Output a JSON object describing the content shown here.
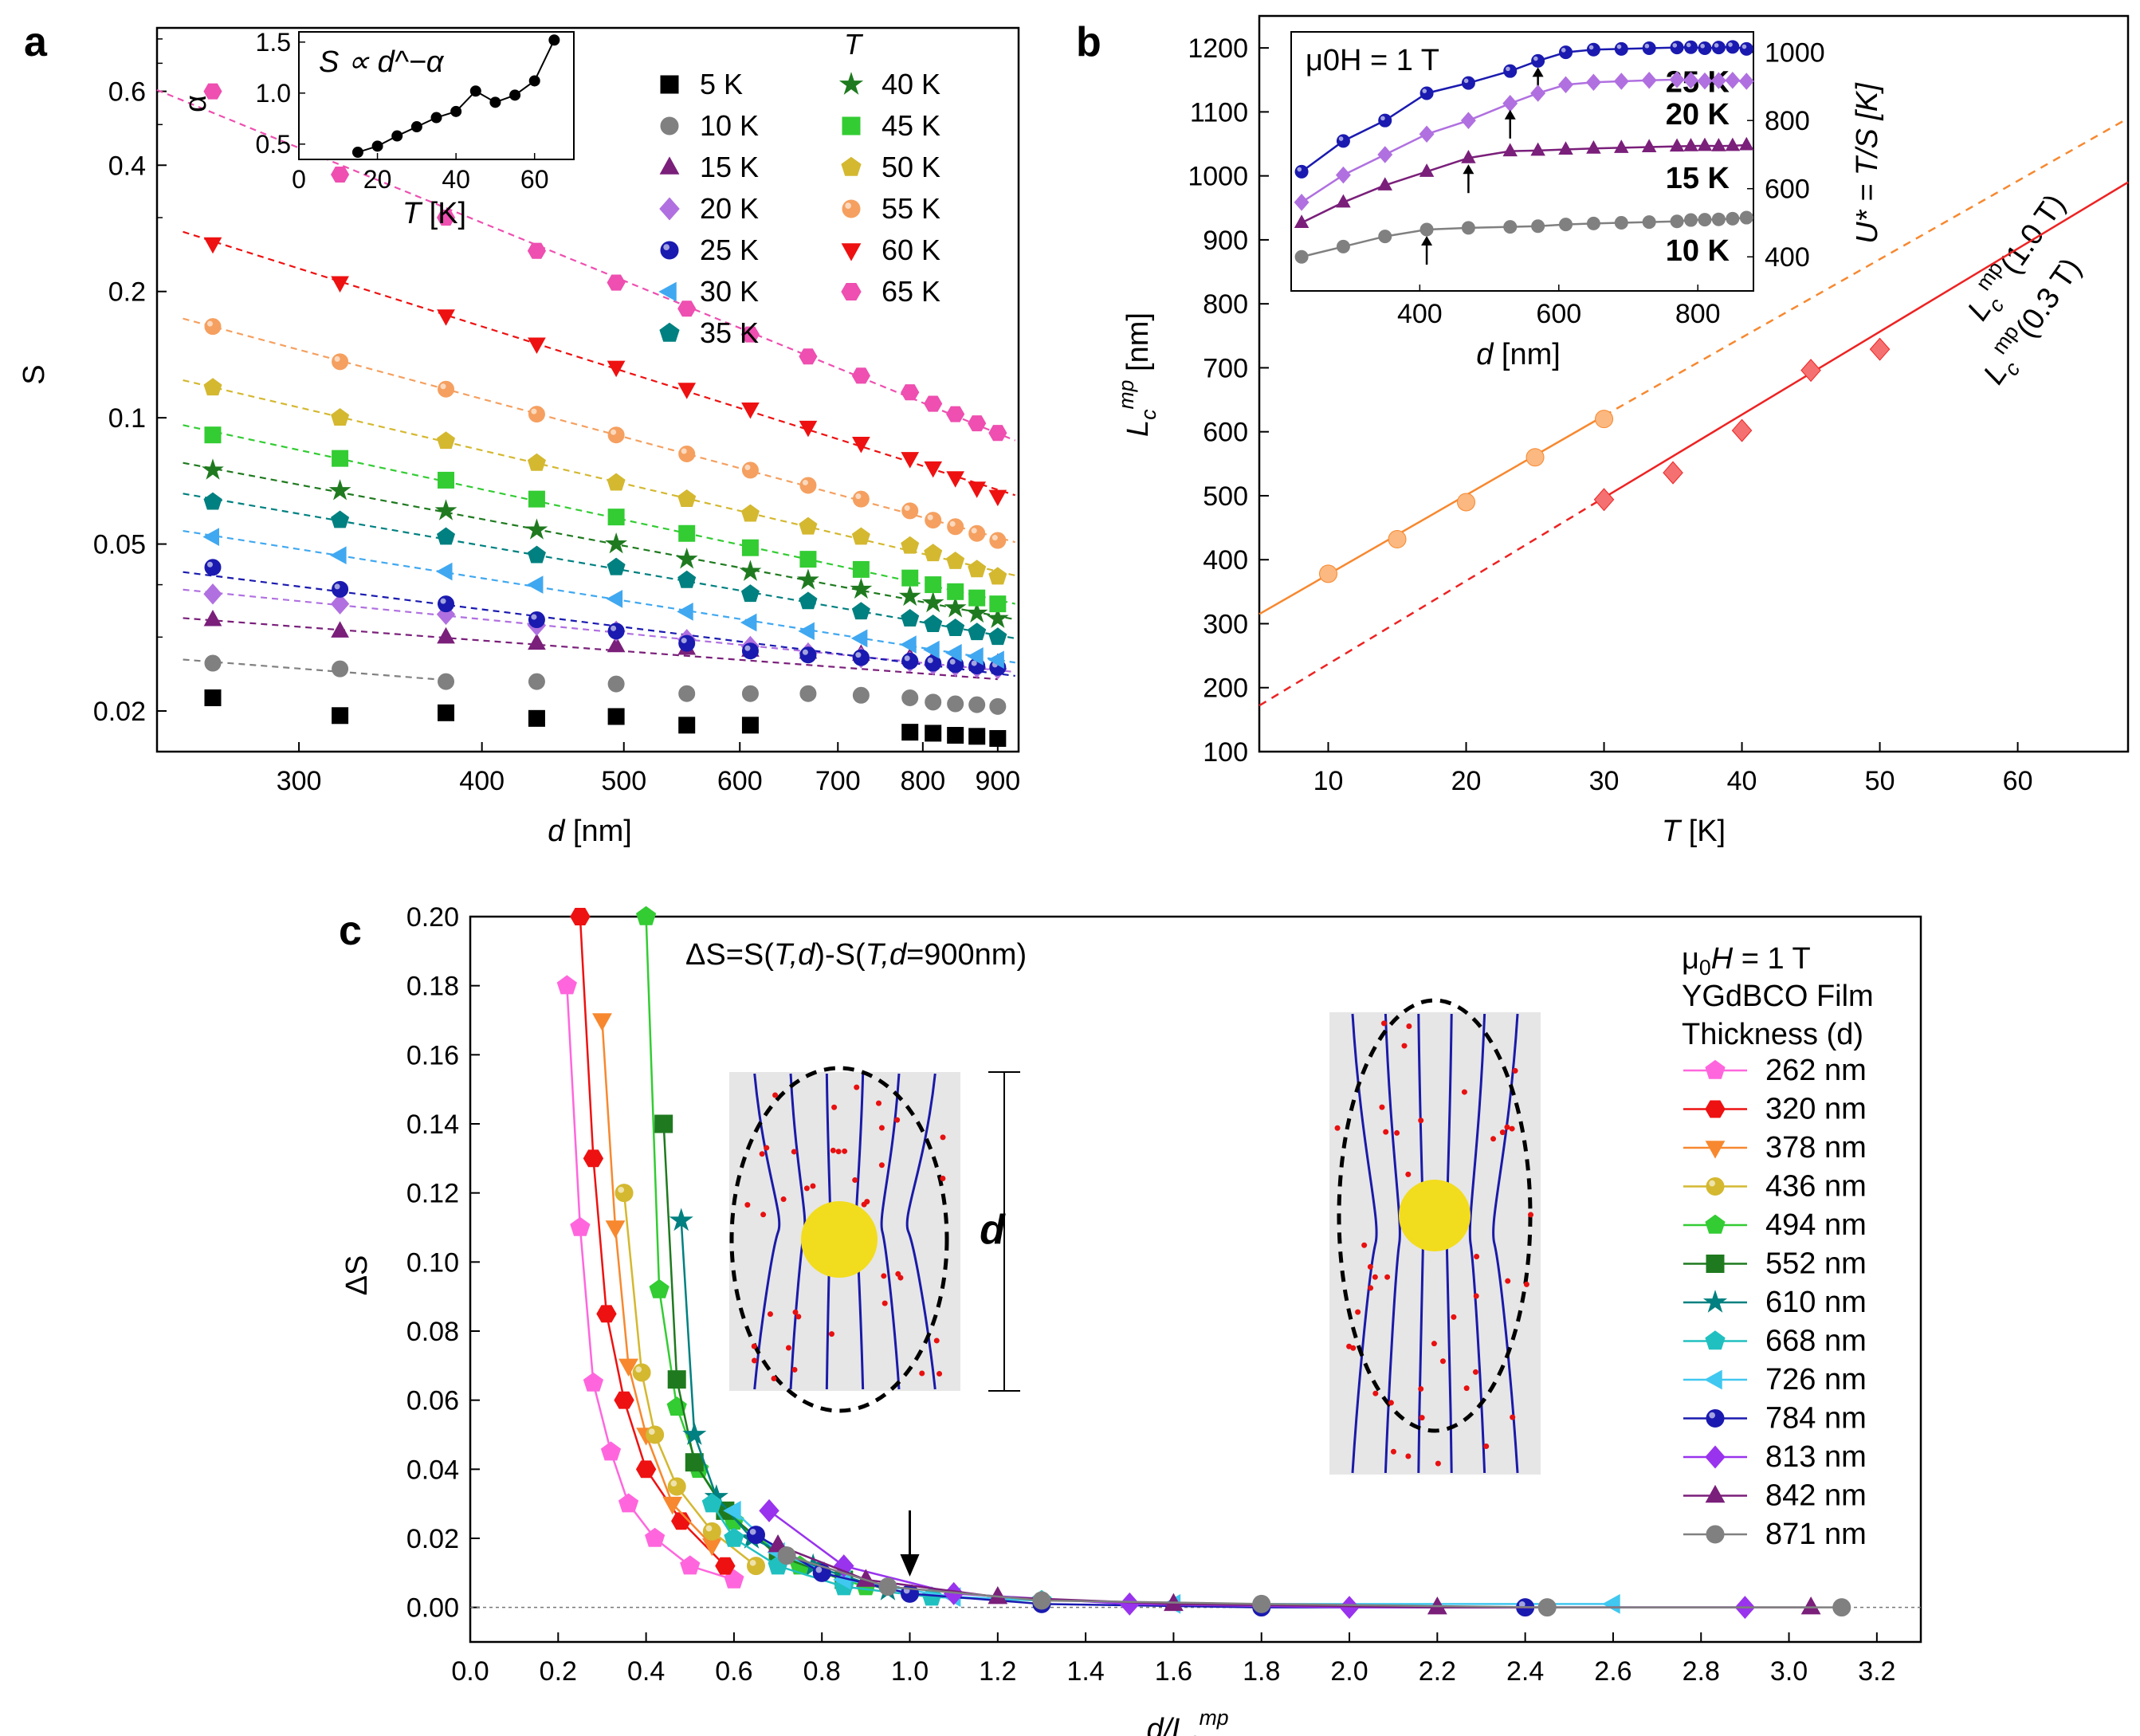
{
  "panels": {
    "a": "a",
    "b": "b",
    "c": "c"
  },
  "chart_data": [
    {
      "id": "a",
      "type": "scatter",
      "yscale": "log",
      "xscale": "log",
      "xlabel_var": "d",
      "xlabel_unit": " [nm]",
      "ylabel": "S",
      "xlim": [
        240,
        930
      ],
      "ylim": [
        0.016,
        0.85
      ],
      "xticks": [
        "300",
        "400",
        "500",
        "600",
        "700",
        "800",
        "900"
      ],
      "yticks": [
        "0.02",
        "0.05",
        "0.1",
        "0.2",
        "0.4",
        "0.6"
      ],
      "legend_title": "T",
      "x": [
        262,
        320,
        378,
        436,
        494,
        552,
        610,
        668,
        726,
        784,
        813,
        842,
        871,
        900
      ],
      "series": [
        {
          "name": "5 K",
          "color": "#000000",
          "marker": "square",
          "values": [
            0.0215,
            0.0195,
            0.0198,
            0.0192,
            0.0194,
            0.0185,
            0.0185,
            null,
            null,
            0.0178,
            0.0177,
            0.0175,
            0.0174,
            0.0172
          ]
        },
        {
          "name": "10 K",
          "color": "#808080",
          "marker": "circle",
          "values": [
            0.026,
            0.0252,
            0.0235,
            0.0235,
            0.0232,
            0.022,
            0.022,
            0.022,
            0.0218,
            0.0215,
            0.021,
            0.0208,
            0.0207,
            0.0205
          ]
        },
        {
          "name": "15 K",
          "color": "#7a1f7a",
          "marker": "triangle",
          "values": [
            0.033,
            0.031,
            0.03,
            0.029,
            0.0286,
            0.0282,
            0.0279,
            0.0276,
            0.0273,
            0.0268,
            0.0265,
            0.0263,
            0.026,
            0.026
          ]
        },
        {
          "name": "20 K",
          "color": "#b070e0",
          "marker": "diamond",
          "values": [
            0.038,
            0.036,
            0.034,
            0.032,
            0.031,
            0.0296,
            0.0285,
            0.0275,
            0.0268,
            0.0262,
            0.0258,
            0.0256,
            0.0254,
            0.0252
          ]
        },
        {
          "name": "25 K",
          "color": "#1a1ab0",
          "marker": "ball",
          "values": [
            0.044,
            0.039,
            0.036,
            0.033,
            0.031,
            0.029,
            0.0278,
            0.0272,
            0.0268,
            0.0263,
            0.026,
            0.0258,
            0.0256,
            0.0254
          ]
        },
        {
          "name": "30 K",
          "color": "#40a8f0",
          "marker": "triangle-left",
          "values": [
            0.052,
            0.047,
            0.043,
            0.04,
            0.037,
            0.0345,
            0.0325,
            0.031,
            0.0298,
            0.0288,
            0.028,
            0.0275,
            0.027,
            0.0265
          ]
        },
        {
          "name": "35 K",
          "color": "#008080",
          "marker": "pentagon",
          "values": [
            0.063,
            0.057,
            0.052,
            0.047,
            0.044,
            0.041,
            0.038,
            0.0365,
            0.0345,
            0.0332,
            0.0322,
            0.0315,
            0.0308,
            0.03
          ]
        },
        {
          "name": "40 K",
          "color": "#1f7a1f",
          "marker": "star",
          "values": [
            0.075,
            0.067,
            0.06,
            0.054,
            0.05,
            0.046,
            0.043,
            0.041,
            0.039,
            0.0375,
            0.0362,
            0.0352,
            0.0342,
            0.0332
          ]
        },
        {
          "name": "45 K",
          "color": "#33cc33",
          "marker": "square",
          "values": [
            0.091,
            0.08,
            0.071,
            0.064,
            0.058,
            0.053,
            0.049,
            0.046,
            0.0435,
            0.0415,
            0.04,
            0.0385,
            0.0372,
            0.036
          ]
        },
        {
          "name": "50 K",
          "color": "#d4b830",
          "marker": "pentagon",
          "values": [
            0.118,
            0.1,
            0.088,
            0.078,
            0.07,
            0.064,
            0.059,
            0.055,
            0.052,
            0.0495,
            0.0475,
            0.0455,
            0.0435,
            0.0418
          ]
        },
        {
          "name": "55 K",
          "color": "#f5a060",
          "marker": "ball",
          "values": [
            0.165,
            0.136,
            0.117,
            0.102,
            0.091,
            0.082,
            0.075,
            0.069,
            0.064,
            0.06,
            0.057,
            0.055,
            0.053,
            0.051
          ]
        },
        {
          "name": "60 K",
          "color": "#ee1111",
          "marker": "triangle-down",
          "values": [
            0.26,
            0.21,
            0.175,
            0.15,
            0.132,
            0.117,
            0.105,
            0.095,
            0.087,
            0.08,
            0.076,
            0.072,
            0.068,
            0.065
          ]
        },
        {
          "name": "65 K",
          "color": "#ee4fb0",
          "marker": "hexagon",
          "values": [
            0.6,
            0.38,
            0.3,
            0.25,
            0.21,
            0.182,
            0.158,
            0.14,
            0.126,
            0.115,
            0.108,
            0.102,
            0.097,
            0.092
          ]
        }
      ],
      "inset": {
        "formula": "S ∝ d^−α",
        "xlabel_var": "T",
        "xlabel_unit": " [K]",
        "ylabel": "α",
        "xlim": [
          0,
          70
        ],
        "ylim": [
          0.35,
          1.6
        ],
        "xticks": [
          "0",
          "20",
          "40",
          "60"
        ],
        "yticks": [
          "0.5",
          "1.0",
          "1.5"
        ],
        "x": [
          15,
          20,
          25,
          30,
          35,
          40,
          45,
          50,
          55,
          60,
          65
        ],
        "values": [
          0.42,
          0.48,
          0.58,
          0.67,
          0.76,
          0.82,
          1.02,
          0.91,
          0.98,
          1.12,
          1.52
        ]
      }
    },
    {
      "id": "b",
      "type": "line",
      "xlabel_var": "T",
      "xlabel_unit": " [K]",
      "ylabel": "L_c^mp [nm]",
      "xlim": [
        5,
        68
      ],
      "ylim": [
        100,
        1250
      ],
      "xticks": [
        "10",
        "20",
        "30",
        "40",
        "50",
        "60"
      ],
      "yticks": [
        "100",
        "200",
        "300",
        "400",
        "500",
        "600",
        "700",
        "800",
        "900",
        "1000",
        "1100",
        "1200"
      ],
      "series": [
        {
          "name": "L_c^mp(1.0 T)",
          "label_main": "L",
          "label_sub": "c",
          "label_sup": "mp",
          "label_tail": "(1.0 T)",
          "color": "#f7882f",
          "marker": "circle",
          "x": [
            10,
            15,
            20,
            25,
            30
          ],
          "values": [
            378,
            432,
            490,
            560,
            620
          ],
          "fit": [
            [
              5,
              315
            ],
            [
              30,
              625
            ]
          ],
          "fit_ext": [
            [
              30,
              625
            ],
            [
              68,
              1090
            ]
          ]
        },
        {
          "name": "L_c^mp(0.3 T)",
          "label_main": "L",
          "label_sub": "c",
          "label_sup": "mp",
          "label_tail": "(0.3 T)",
          "color": "#ee2222",
          "marker": "diamond",
          "x": [
            30,
            35,
            40,
            45,
            50
          ],
          "values": [
            494,
            536,
            602,
            696,
            729
          ],
          "fit": [
            [
              30,
              497
            ],
            [
              68,
              990
            ]
          ],
          "fit_ext": [
            [
              5,
              172
            ],
            [
              30,
              497
            ]
          ]
        }
      ],
      "inset": {
        "field": "μ0H = 1 T",
        "xlabel_var": "d",
        "xlabel_unit": " [nm]",
        "ylabel": "U* = T/S [K]",
        "xlim": [
          215,
          880
        ],
        "ylim": [
          300,
          1060
        ],
        "xticks": [
          "400",
          "600",
          "800"
        ],
        "yticks": [
          "400",
          "600",
          "800",
          "1000"
        ],
        "x": [
          230,
          290,
          350,
          410,
          470,
          530,
          570,
          610,
          650,
          690,
          730,
          770,
          790,
          810,
          830,
          850,
          870
        ],
        "series": [
          {
            "name": "25 K",
            "color": "#1a1ab0",
            "values": [
              650,
              740,
              800,
              880,
              910,
              945,
              975,
              1000,
              1008,
              1010,
              1012,
              1014,
              1015,
              1012,
              1014,
              1016,
              1010
            ]
          },
          {
            "name": "20 K",
            "color": "#b070e0",
            "values": [
              560,
              640,
              700,
              760,
              800,
              850,
              880,
              905,
              912,
              915,
              918,
              920,
              918,
              916,
              917,
              918,
              915
            ]
          },
          {
            "name": "15 K",
            "color": "#7a1f7a",
            "values": [
              500,
              560,
              610,
              650,
              690,
              710,
              712,
              715,
              718,
              720,
              722,
              724,
              725,
              726,
              725,
              726,
              728
            ]
          },
          {
            "name": "10 K",
            "color": "#808080",
            "values": [
              400,
              430,
              460,
              480,
              485,
              488,
              490,
              495,
              498,
              500,
              502,
              504,
              508,
              509,
              510,
              512,
              515
            ]
          }
        ]
      }
    },
    {
      "id": "c",
      "type": "line",
      "annotation": "ΔS=S(T,d)-S(T,d=900nm)",
      "xlabel": "d/L_c^mp",
      "ylabel": "ΔS",
      "xlim": [
        0,
        3.3
      ],
      "ylim": [
        -0.01,
        0.2
      ],
      "xticks": [
        "0.0",
        "0.2",
        "0.4",
        "0.6",
        "0.8",
        "1.0",
        "1.2",
        "1.4",
        "1.6",
        "1.8",
        "2.0",
        "2.2",
        "2.4",
        "2.6",
        "2.8",
        "3.0",
        "3.2"
      ],
      "yticks": [
        "0.00",
        "0.02",
        "0.04",
        "0.06",
        "0.08",
        "0.10",
        "0.12",
        "0.14",
        "0.16",
        "0.18",
        "0.20"
      ],
      "legend_header": [
        "μ0H = 1 T",
        "YGdBCO Film",
        "Thickness (d)"
      ],
      "inset_label": "d",
      "series": [
        {
          "name": "262 nm",
          "color": "#ff66dd",
          "marker": "pentagon",
          "x": [
            0.22,
            0.25,
            0.28,
            0.32,
            0.36,
            0.42,
            0.5,
            0.6
          ],
          "values": [
            0.18,
            0.11,
            0.065,
            0.045,
            0.03,
            0.02,
            0.012,
            0.008
          ]
        },
        {
          "name": "320 nm",
          "color": "#ee1111",
          "marker": "hexagon",
          "x": [
            0.25,
            0.28,
            0.31,
            0.35,
            0.4,
            0.48,
            0.58
          ],
          "values": [
            0.2,
            0.13,
            0.085,
            0.06,
            0.04,
            0.025,
            0.012
          ]
        },
        {
          "name": "378 nm",
          "color": "#f7882f",
          "marker": "triangle-down",
          "x": [
            0.3,
            0.33,
            0.36,
            0.4,
            0.46,
            0.55
          ],
          "values": [
            0.17,
            0.11,
            0.07,
            0.05,
            0.03,
            0.018
          ]
        },
        {
          "name": "436 nm",
          "color": "#d4b830",
          "marker": "ball",
          "x": [
            0.35,
            0.39,
            0.42,
            0.47,
            0.55,
            0.65
          ],
          "values": [
            0.12,
            0.068,
            0.05,
            0.035,
            0.022,
            0.012
          ]
        },
        {
          "name": "494 nm",
          "color": "#33cc33",
          "marker": "pentagon",
          "x": [
            0.4,
            0.43,
            0.47,
            0.52,
            0.6,
            0.75,
            0.9
          ],
          "values": [
            0.2,
            0.092,
            0.058,
            0.04,
            0.025,
            0.012,
            0.006
          ]
        },
        {
          "name": "552 nm",
          "color": "#1f7a1f",
          "marker": "square",
          "x": [
            0.44,
            0.47,
            0.51,
            0.58,
            0.7,
            0.85
          ],
          "values": [
            0.14,
            0.066,
            0.042,
            0.028,
            0.015,
            0.008
          ]
        },
        {
          "name": "610 nm",
          "color": "#008080",
          "marker": "star",
          "x": [
            0.48,
            0.51,
            0.56,
            0.64,
            0.78,
            0.95
          ],
          "values": [
            0.112,
            0.05,
            0.032,
            0.02,
            0.012,
            0.005
          ]
        },
        {
          "name": "668 nm",
          "color": "#20c0c0",
          "marker": "pentagon",
          "x": [
            0.55,
            0.6,
            0.7,
            0.85,
            1.05,
            1.3
          ],
          "values": [
            0.03,
            0.02,
            0.012,
            0.006,
            0.003,
            0.002
          ]
        },
        {
          "name": "726 nm",
          "color": "#40c8f0",
          "marker": "triangle-left",
          "x": [
            0.6,
            0.7,
            0.85,
            1.1,
            1.6,
            2.6
          ],
          "values": [
            0.028,
            0.016,
            0.008,
            0.003,
            0.001,
            0.001
          ]
        },
        {
          "name": "784 nm",
          "color": "#1a1ab0",
          "marker": "ball",
          "x": [
            0.65,
            0.8,
            1.0,
            1.3,
            1.8,
            2.4
          ],
          "values": [
            0.021,
            0.01,
            0.004,
            0.001,
            0,
            0
          ]
        },
        {
          "name": "813 nm",
          "color": "#9933ee",
          "marker": "diamond",
          "x": [
            0.68,
            0.85,
            1.1,
            1.5,
            2.0,
            2.9
          ],
          "values": [
            0.028,
            0.012,
            0.004,
            0.001,
            0,
            0
          ]
        },
        {
          "name": "842 nm",
          "color": "#7a1f7a",
          "marker": "triangle",
          "x": [
            0.7,
            0.9,
            1.2,
            1.6,
            2.2,
            3.05
          ],
          "values": [
            0.018,
            0.008,
            0.003,
            0.001,
            0,
            0
          ]
        },
        {
          "name": "871 nm",
          "color": "#808080",
          "marker": "circle",
          "x": [
            0.72,
            0.95,
            1.3,
            1.8,
            2.45,
            3.12
          ],
          "values": [
            0.015,
            0.006,
            0.002,
            0.001,
            0,
            0
          ]
        }
      ]
    }
  ]
}
